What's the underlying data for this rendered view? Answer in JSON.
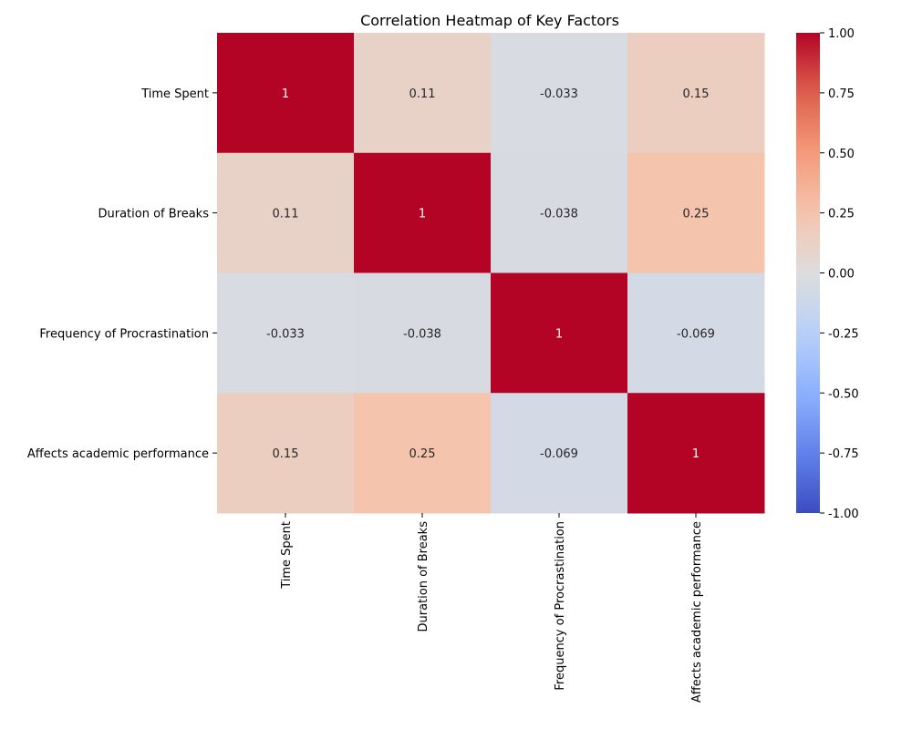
{
  "chart_data": {
    "type": "heatmap",
    "title": "Correlation Heatmap of Key Factors",
    "colormap": "coolwarm",
    "row_labels": [
      "Time Spent",
      "Duration of Breaks",
      "Frequency of Procrastination",
      "Affects academic performance"
    ],
    "col_labels": [
      "Time Spent",
      "Duration of Breaks",
      "Frequency of Procrastination",
      "Affects academic performance"
    ],
    "values": [
      [
        1,
        0.11,
        -0.033,
        0.15
      ],
      [
        0.11,
        1,
        -0.038,
        0.25
      ],
      [
        -0.033,
        -0.038,
        1,
        -0.069
      ],
      [
        0.15,
        0.25,
        -0.069,
        1
      ]
    ],
    "annotations": [
      [
        "1",
        "0.11",
        "-0.033",
        "0.15"
      ],
      [
        "0.11",
        "1",
        "-0.038",
        "0.25"
      ],
      [
        "-0.033",
        "-0.038",
        "1",
        "-0.069"
      ],
      [
        "0.15",
        "0.25",
        "-0.069",
        "1"
      ]
    ],
    "vmin": -1.0,
    "vmax": 1.0,
    "colorbar_ticks": [
      "1.00",
      "0.75",
      "0.50",
      "0.25",
      "0.00",
      "-0.25",
      "-0.50",
      "-0.75",
      "-1.00"
    ],
    "colorbar_tick_values": [
      1.0,
      0.75,
      0.5,
      0.25,
      0.0,
      -0.25,
      -0.5,
      -0.75,
      -1.0
    ],
    "colorbar_position": "right",
    "grid": false
  }
}
